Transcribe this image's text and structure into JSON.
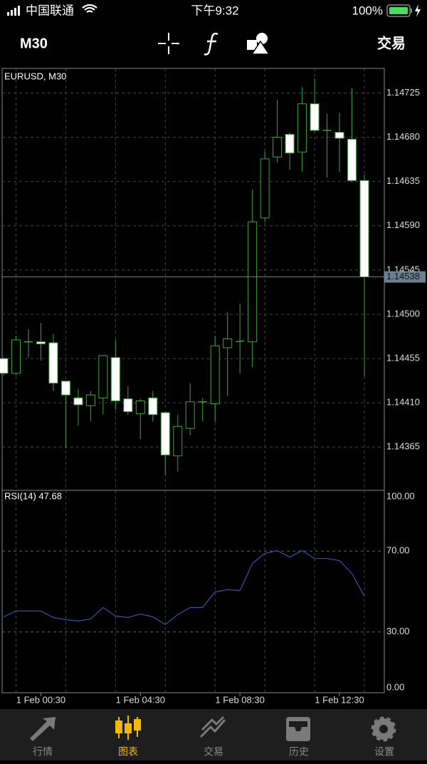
{
  "status_bar": {
    "carrier": "中国联通",
    "time": "下午9:32",
    "battery": "100%"
  },
  "toolbar": {
    "timeframe": "M30",
    "trade": "交易"
  },
  "chart_data": [
    {
      "type": "candlestick",
      "title": "EURUSD, M30",
      "categories": [
        null,
        null,
        null,
        "1 Feb 00:30",
        null,
        null,
        null,
        null,
        null,
        null,
        null,
        "1 Feb 04:30",
        null,
        null,
        null,
        null,
        null,
        null,
        null,
        "1 Feb 08:30",
        null,
        null,
        null,
        null,
        null,
        null,
        null,
        "1 Feb 12:30",
        null,
        null
      ],
      "open": [
        1.14455,
        1.1444,
        1.14472,
        1.14472,
        1.14471,
        1.14432,
        1.14415,
        1.14407,
        1.14415,
        1.14456,
        1.14414,
        1.14399,
        1.14415,
        1.144,
        1.14356,
        1.14384,
        1.14411,
        1.14409,
        1.14466,
        1.14472,
        1.14472,
        1.14598,
        1.1466,
        1.14683,
        1.14665,
        1.14714,
        1.14687,
        1.14685,
        1.14678,
        1.14636
      ],
      "high": [
        1.14456,
        1.14478,
        1.14485,
        1.14491,
        1.1448,
        1.14432,
        1.14424,
        1.14422,
        1.14458,
        1.14474,
        1.14427,
        1.14414,
        1.14422,
        1.144,
        1.14398,
        1.1443,
        1.14415,
        1.14478,
        1.14502,
        1.14511,
        1.14627,
        1.14666,
        1.14718,
        1.14685,
        1.14731,
        1.1474,
        1.14704,
        1.14705,
        1.1473,
        1.14642
      ],
      "low": [
        1.14438,
        1.14438,
        1.14456,
        1.14453,
        1.14422,
        1.14364,
        1.14387,
        1.14391,
        1.14398,
        1.14403,
        1.14398,
        1.14373,
        1.14391,
        1.14337,
        1.1434,
        1.14377,
        1.14391,
        1.14391,
        1.14417,
        1.1444,
        1.14446,
        1.14594,
        1.14654,
        1.14647,
        1.14645,
        1.14685,
        1.14639,
        1.14645,
        1.14634,
        1.14437
      ],
      "close": [
        1.1444,
        1.14474,
        1.14472,
        1.1447,
        1.1443,
        1.14418,
        1.14408,
        1.14418,
        1.14458,
        1.14412,
        1.14401,
        1.14412,
        1.14398,
        1.14357,
        1.14386,
        1.14411,
        1.14411,
        1.14468,
        1.14475,
        1.14473,
        1.14594,
        1.14658,
        1.1468,
        1.14664,
        1.14714,
        1.14687,
        1.14687,
        1.14679,
        1.14636,
        1.14538
      ],
      "up_color": "#000000",
      "down_color": "#ffffff",
      "outline_color": "#3fa33f",
      "ylim": [
        1.14321,
        1.1475
      ],
      "yticks": [
        1.14365,
        {
          "value": 1.1441,
          "label": "1.14410"
        },
        1.14455,
        {
          "value": 1.145,
          "label": "1.14500"
        },
        1.14545,
        {
          "value": 1.1459,
          "label": "1.14590"
        },
        1.14635,
        {
          "value": 1.1468,
          "label": "1.14680"
        },
        1.14725
      ],
      "grid": true
    },
    {
      "type": "line",
      "title": "RSI(14) 47.68",
      "color": "#3f4fa8",
      "values": [
        37.5,
        40.4,
        40.4,
        40.4,
        37.2,
        36.1,
        35.4,
        36.5,
        42.1,
        37.9,
        37.2,
        38.9,
        37.5,
        33.7,
        38.6,
        42.1,
        42.1,
        49.8,
        50.9,
        50.5,
        63.9,
        68.8,
        70.2,
        67.0,
        70.2,
        66.3,
        66.3,
        65.3,
        58.9,
        47.68
      ],
      "ylim": [
        0,
        100
      ],
      "yticks": [
        {
          "value": 0,
          "label": "0.00"
        },
        {
          "value": 30,
          "label": "30.00"
        },
        {
          "value": 70,
          "label": "70.00"
        },
        {
          "value": 100,
          "label": "100.00"
        }
      ]
    }
  ],
  "tab_bar": {
    "tabs": [
      "行情",
      "图表",
      "交易",
      "历史",
      "设置"
    ],
    "active": 1
  }
}
